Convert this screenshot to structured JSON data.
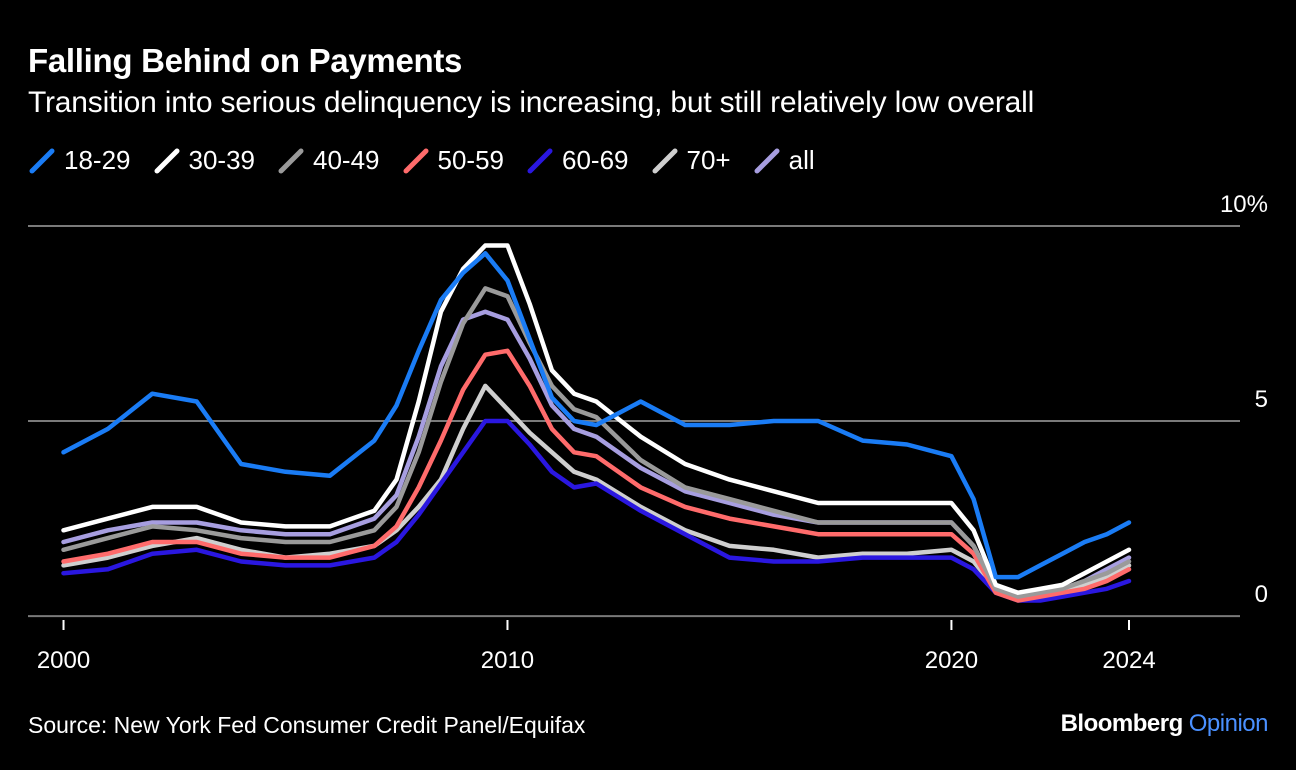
{
  "title": "Falling Behind on Payments",
  "subtitle": "Transition into serious delinquency is increasing, but still relatively low overall",
  "source": "Source: New York Fed Consumer Credit Panel/Equifax",
  "brand": {
    "part1": "Bloomberg",
    "part2": "Opinion"
  },
  "chart_data": {
    "type": "line",
    "title": "Falling Behind on Payments",
    "subtitle": "Transition into serious delinquency is increasing, but still relatively low overall",
    "xlabel": "",
    "ylabel": "",
    "xlim": [
      1999.2,
      2026.5
    ],
    "ylim": [
      -0.1,
      10
    ],
    "x_ticks": [
      {
        "value": 2000,
        "label": "2000"
      },
      {
        "value": 2010,
        "label": "2010"
      },
      {
        "value": 2020,
        "label": "2020"
      },
      {
        "value": 2024,
        "label": "2024"
      }
    ],
    "y_ticks": [
      {
        "value": 0,
        "label": "0"
      },
      {
        "value": 5,
        "label": "5"
      },
      {
        "value": 10,
        "label": "10%"
      }
    ],
    "grid": true,
    "legend_position": "top-left",
    "x": [
      2000,
      2001,
      2002,
      2003,
      2004,
      2005,
      2006,
      2007,
      2007.5,
      2008,
      2008.5,
      2009,
      2009.5,
      2010,
      2010.5,
      2011,
      2011.5,
      2012,
      2013,
      2014,
      2015,
      2016,
      2017,
      2018,
      2019,
      2020,
      2020.5,
      2021,
      2021.5,
      2022,
      2022.5,
      2023,
      2023.5,
      2024
    ],
    "series": [
      {
        "name": "18-29",
        "color": "#1a7cf5",
        "values": [
          4.2,
          4.8,
          5.7,
          5.5,
          3.9,
          3.7,
          3.6,
          4.5,
          5.4,
          6.8,
          8.1,
          8.8,
          9.3,
          8.6,
          7.1,
          5.6,
          5.0,
          4.9,
          5.5,
          4.9,
          4.9,
          5.0,
          5.0,
          4.5,
          4.4,
          4.1,
          3.0,
          1.0,
          1.0,
          1.3,
          1.6,
          1.9,
          2.1,
          2.4
        ]
      },
      {
        "name": "30-39",
        "color": "#ffffff",
        "values": [
          2.2,
          2.5,
          2.8,
          2.8,
          2.4,
          2.3,
          2.3,
          2.7,
          3.5,
          5.5,
          7.8,
          8.9,
          9.5,
          9.5,
          8.0,
          6.3,
          5.7,
          5.5,
          4.6,
          3.9,
          3.5,
          3.2,
          2.9,
          2.9,
          2.9,
          2.9,
          2.2,
          0.8,
          0.6,
          0.7,
          0.8,
          1.1,
          1.4,
          1.7
        ]
      },
      {
        "name": "40-49",
        "color": "#9a9a9a",
        "values": [
          1.7,
          2.0,
          2.3,
          2.2,
          2.0,
          1.9,
          1.9,
          2.2,
          2.8,
          4.2,
          6.0,
          7.5,
          8.4,
          8.2,
          7.0,
          5.9,
          5.3,
          5.1,
          4.0,
          3.3,
          3.0,
          2.7,
          2.4,
          2.4,
          2.4,
          2.4,
          1.8,
          0.7,
          0.5,
          0.6,
          0.7,
          0.9,
          1.1,
          1.4
        ]
      },
      {
        "name": "50-59",
        "color": "#ff6b6b",
        "values": [
          1.4,
          1.6,
          1.9,
          1.9,
          1.6,
          1.5,
          1.5,
          1.8,
          2.3,
          3.3,
          4.5,
          5.8,
          6.7,
          6.8,
          5.9,
          4.8,
          4.2,
          4.1,
          3.3,
          2.8,
          2.5,
          2.3,
          2.1,
          2.1,
          2.1,
          2.1,
          1.6,
          0.6,
          0.4,
          0.5,
          0.6,
          0.7,
          0.9,
          1.2
        ]
      },
      {
        "name": "60-69",
        "color": "#2a17e0",
        "values": [
          1.1,
          1.2,
          1.6,
          1.7,
          1.4,
          1.3,
          1.3,
          1.5,
          1.9,
          2.6,
          3.4,
          4.2,
          5.0,
          5.0,
          4.4,
          3.7,
          3.3,
          3.4,
          2.7,
          2.1,
          1.5,
          1.4,
          1.4,
          1.5,
          1.5,
          1.5,
          1.2,
          0.6,
          0.4,
          0.4,
          0.5,
          0.6,
          0.7,
          0.9
        ]
      },
      {
        "name": "70+",
        "color": "#cfcfcf",
        "values": [
          1.3,
          1.5,
          1.8,
          2.0,
          1.7,
          1.5,
          1.6,
          1.8,
          2.2,
          2.8,
          3.5,
          4.8,
          5.9,
          5.3,
          4.7,
          4.2,
          3.7,
          3.5,
          2.8,
          2.2,
          1.8,
          1.7,
          1.5,
          1.6,
          1.6,
          1.7,
          1.4,
          0.7,
          0.5,
          0.5,
          0.6,
          0.8,
          1.0,
          1.3
        ]
      },
      {
        "name": "all",
        "color": "#a79ee0",
        "values": [
          1.9,
          2.2,
          2.4,
          2.4,
          2.2,
          2.1,
          2.1,
          2.5,
          3.1,
          4.6,
          6.4,
          7.6,
          7.8,
          7.6,
          6.6,
          5.4,
          4.8,
          4.6,
          3.8,
          3.2,
          2.9,
          2.6,
          2.4,
          2.4,
          2.4,
          2.4,
          1.8,
          0.7,
          0.5,
          0.6,
          0.7,
          0.9,
          1.2,
          1.5
        ]
      }
    ]
  }
}
